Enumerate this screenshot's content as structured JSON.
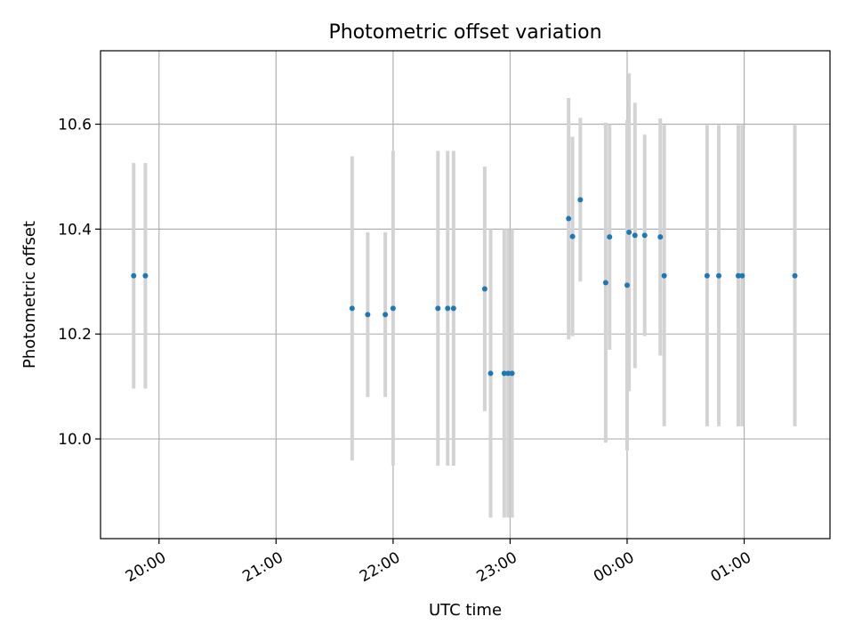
{
  "chart_data": {
    "type": "scatter",
    "title": "Photometric offset variation",
    "xlabel": "UTC time",
    "ylabel": "Photometric offset",
    "x_axis": "time",
    "x_reference_date": "",
    "xlim": [
      "19:30",
      "01:44"
    ],
    "ylim": [
      9.81,
      10.74
    ],
    "grid": true,
    "x_ticks": [
      "20:00",
      "21:00",
      "22:00",
      "23:00",
      "00:00",
      "01:00"
    ],
    "y_ticks": [
      10.0,
      10.2,
      10.4,
      10.6
    ],
    "y_tick_labels": [
      "10.0",
      "10.2",
      "10.4",
      "10.6"
    ],
    "marker_color": "#1f77b4",
    "errorbar_color": "#d3d3d3",
    "points": [
      {
        "x": "19:47",
        "y": 10.311,
        "err": 0.215
      },
      {
        "x": "19:53",
        "y": 10.311,
        "err": 0.215
      },
      {
        "x": "21:39",
        "y": 10.249,
        "err": 0.29
      },
      {
        "x": "21:47",
        "y": 10.237,
        "err": 0.157
      },
      {
        "x": "21:56",
        "y": 10.237,
        "err": 0.157
      },
      {
        "x": "22:00",
        "y": 10.249,
        "err": 0.3
      },
      {
        "x": "22:23",
        "y": 10.249,
        "err": 0.3
      },
      {
        "x": "22:28",
        "y": 10.249,
        "err": 0.3
      },
      {
        "x": "22:31",
        "y": 10.249,
        "err": 0.3
      },
      {
        "x": "22:47",
        "y": 10.286,
        "err": 0.233
      },
      {
        "x": "22:50",
        "y": 10.125,
        "err": 0.275
      },
      {
        "x": "22:57",
        "y": 10.125,
        "err": 0.275
      },
      {
        "x": "22:59",
        "y": 10.125,
        "err": 0.275
      },
      {
        "x": "23:01",
        "y": 10.125,
        "err": 0.275
      },
      {
        "x": "23:30",
        "y": 10.42,
        "err": 0.23
      },
      {
        "x": "23:32",
        "y": 10.386,
        "err": 0.19
      },
      {
        "x": "23:36",
        "y": 10.456,
        "err": 0.156
      },
      {
        "x": "23:49",
        "y": 10.298,
        "err": 0.305
      },
      {
        "x": "23:51",
        "y": 10.385,
        "err": 0.215
      },
      {
        "x": "00:00",
        "y": 10.293,
        "err": 0.315
      },
      {
        "x": "00:01",
        "y": 10.394,
        "err": 0.303
      },
      {
        "x": "00:04",
        "y": 10.388,
        "err": 0.253
      },
      {
        "x": "00:09",
        "y": 10.388,
        "err": 0.192
      },
      {
        "x": "00:17",
        "y": 10.385,
        "err": 0.226
      },
      {
        "x": "00:19",
        "y": 10.311,
        "err": 0.287
      },
      {
        "x": "00:41",
        "y": 10.311,
        "err": 0.287
      },
      {
        "x": "00:47",
        "y": 10.311,
        "err": 0.287
      },
      {
        "x": "00:57",
        "y": 10.311,
        "err": 0.287
      },
      {
        "x": "00:59",
        "y": 10.311,
        "err": 0.287
      },
      {
        "x": "01:26",
        "y": 10.311,
        "err": 0.287
      }
    ]
  }
}
